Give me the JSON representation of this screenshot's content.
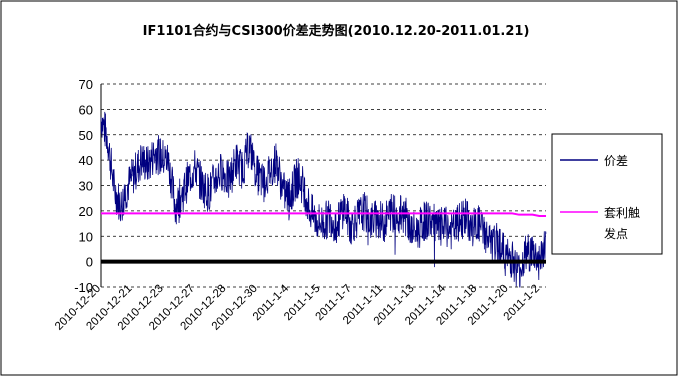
{
  "chart_data": {
    "type": "line",
    "title": "IF1101合约与CSI300价差走势图(2010.12.20-2011.01.21)",
    "xlabel": "",
    "ylabel": "",
    "ylim": [
      -10,
      70
    ],
    "yticks": [
      -10,
      0,
      10,
      20,
      30,
      40,
      50,
      60,
      70
    ],
    "x_tick_labels": [
      "2010-12-20",
      "2010-12-21",
      "2010-12-23",
      "2010-12-27",
      "2010-12-28",
      "2010-12-30",
      "2011-1-4",
      "2011-1-5",
      "2011-1-7",
      "2011-1-11",
      "2011-1-13",
      "2011-1-14",
      "2011-1-18",
      "2011-1-20",
      "2011-1-2"
    ],
    "grid": "horizontal-dashed",
    "legend_position": "right",
    "series": [
      {
        "name": "价差",
        "color": "#000080",
        "values": [
          57,
          48,
          28,
          22,
          30,
          35,
          40,
          38,
          43,
          41,
          40,
          22,
          26,
          33,
          37,
          30,
          27,
          33,
          36,
          31,
          40,
          36,
          46,
          35,
          31,
          35,
          40,
          28,
          25,
          33,
          30,
          20,
          16,
          15,
          18,
          14,
          22,
          14,
          17,
          20,
          16,
          17,
          15,
          20,
          18,
          19,
          12,
          12,
          16,
          16,
          13,
          14,
          12,
          15,
          18,
          13,
          15,
          11,
          6,
          8,
          2,
          1,
          -4,
          3,
          4,
          0,
          7
        ]
      },
      {
        "name": "套利触发点",
        "color": "#ff00ff",
        "values": [
          19,
          19,
          19,
          19,
          19,
          19,
          19,
          19,
          19,
          19,
          19,
          19,
          19,
          19,
          19,
          19,
          19,
          19,
          19,
          19,
          19,
          19,
          19,
          19,
          19,
          19,
          19,
          19,
          19,
          19,
          19,
          19,
          19,
          19,
          19,
          19,
          19,
          19,
          19,
          19,
          19,
          19,
          19,
          19,
          19,
          19,
          19,
          19,
          19,
          19,
          19,
          19,
          19,
          19,
          19,
          19,
          19,
          19,
          19,
          19,
          19,
          19,
          18.5,
          18.5,
          18.5,
          18,
          18
        ]
      }
    ]
  }
}
